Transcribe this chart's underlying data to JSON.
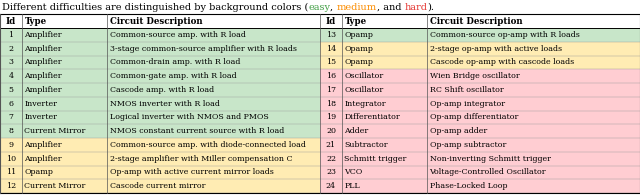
{
  "color_easy": "#C8E6C9",
  "color_medium": "#FFECB3",
  "color_hard": "#FFCDD2",
  "color_easy_text": "#43A047",
  "color_medium_text": "#FB8C00",
  "color_hard_text": "#E53935",
  "left_rows": [
    [
      1,
      "Amplifier",
      "Common-source amp. with R load",
      "easy"
    ],
    [
      2,
      "Amplifier",
      "3-stage common-source amplifier with R loads",
      "easy"
    ],
    [
      3,
      "Amplifier",
      "Common-drain amp. with R load",
      "easy"
    ],
    [
      4,
      "Amplifier",
      "Common-gate amp. with R load",
      "easy"
    ],
    [
      5,
      "Amplifier",
      "Cascode amp. with R load",
      "easy"
    ],
    [
      6,
      "Inverter",
      "NMOS inverter with R load",
      "easy"
    ],
    [
      7,
      "Inverter",
      "Logical inverter with NMOS and PMOS",
      "easy"
    ],
    [
      8,
      "Current Mirror",
      "NMOS constant current source with R load",
      "easy"
    ],
    [
      9,
      "Amplifier",
      "Common-source amp. with diode-connected load",
      "medium"
    ],
    [
      10,
      "Amplifier",
      "2-stage amplifier with Miller compensation C",
      "medium"
    ],
    [
      11,
      "Opamp",
      "Op-amp with active current mirror loads",
      "medium"
    ],
    [
      12,
      "Current Mirror",
      "Cascode current mirror",
      "medium"
    ]
  ],
  "right_rows": [
    [
      13,
      "Opamp",
      "Common-source op-amp with R loads",
      "easy"
    ],
    [
      14,
      "Opamp",
      "2-stage op-amp with active loads",
      "medium"
    ],
    [
      15,
      "Opamp",
      "Cascode op-amp with cascode loads",
      "medium"
    ],
    [
      16,
      "Oscillator",
      "Wien Bridge oscillator",
      "hard"
    ],
    [
      17,
      "Oscillator",
      "RC Shift oscillator",
      "hard"
    ],
    [
      18,
      "Integrator",
      "Op-amp integrator",
      "hard"
    ],
    [
      19,
      "Differentiator",
      "Op-amp differentiator",
      "hard"
    ],
    [
      20,
      "Adder",
      "Op-amp adder",
      "hard"
    ],
    [
      21,
      "Subtractor",
      "Op-amp subtractor",
      "hard"
    ],
    [
      22,
      "Schmitt trigger",
      "Non-inverting Schmitt trigger",
      "hard"
    ],
    [
      23,
      "VCO",
      "Voltage-Controlled Oscillator",
      "hard"
    ],
    [
      24,
      "PLL",
      "Phase-Locked Loop",
      "hard"
    ]
  ],
  "figsize": [
    6.4,
    1.95
  ],
  "dpi": 100,
  "title_fontsize": 7.0,
  "header_fontsize": 6.2,
  "cell_fontsize": 5.7
}
